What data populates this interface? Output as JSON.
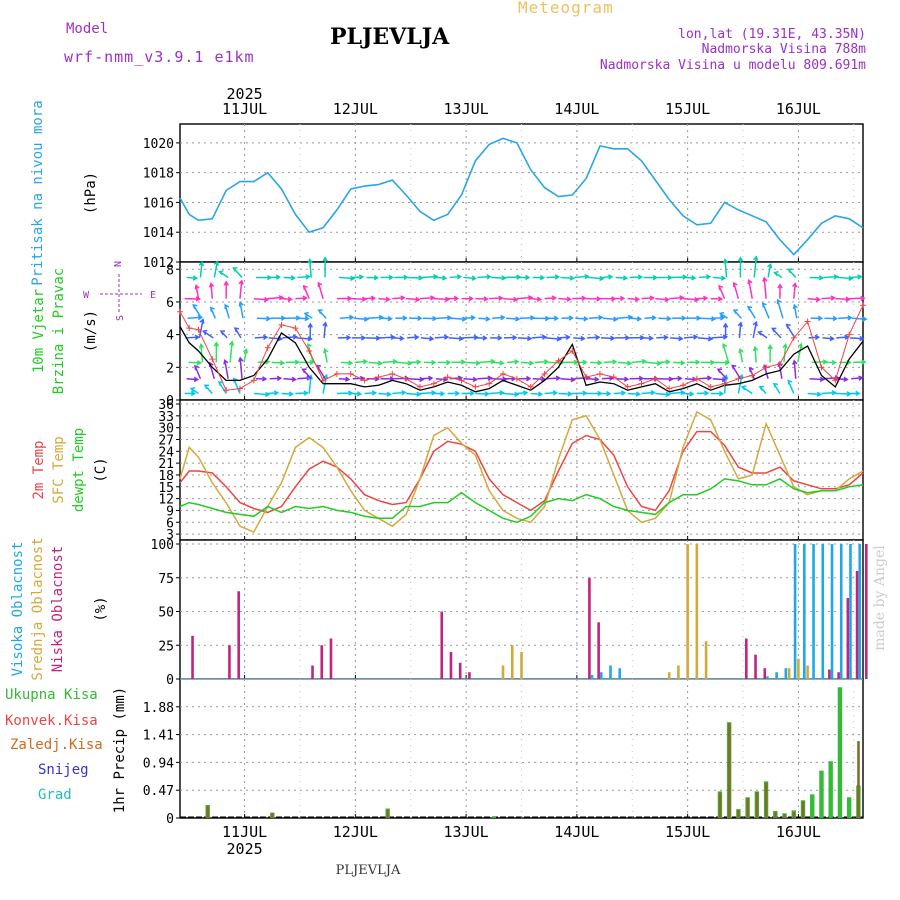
{
  "header": {
    "model_label": "Model",
    "model_name": "wrf-nmm_v3.9.1 e1km",
    "station": "PLJEVLJA",
    "product": "Meteogram",
    "lonlat": "lon,lat (19.31E, 43.35N)",
    "elevation": "Nadmorska Visina 788m",
    "model_elevation": "Nadmorska Visina u modelu 809.691m",
    "footer_station": "PLJEVLJA",
    "watermark": "made by Angel"
  },
  "time_axis": {
    "year": "2025",
    "days": [
      "11JUL",
      "12JUL",
      "13JUL",
      "14JUL",
      "15JUL",
      "16JUL"
    ],
    "start_hour": -14,
    "end_hour": 134
  },
  "colors": {
    "pressure": "#2aa6e6",
    "temp2m": "#ee4444",
    "sfc_temp": "#d4a93a",
    "dewpoint": "#22cc22",
    "high_cloud": "#1fa8e8",
    "mid_cloud": "#d4a93a",
    "low_cloud": "#c2237f",
    "total_precip": "#33bb33",
    "conv_precip": "#ee4444",
    "grid_precip": "#d2691e",
    "snow": "#3333cc",
    "hail": "#22bbbb",
    "wind_magenta": "#9b30c8"
  },
  "panels": {
    "pressure": {
      "title": "Pritisak na nivou mora",
      "unit": "(hPa)"
    },
    "wind": {
      "title1": "10m Vjetar",
      "title2": "Brzina i Pravac",
      "unit": "(m/s)",
      "compass_n": "N",
      "compass_s": "S",
      "compass_w": "W",
      "compass_e": "E"
    },
    "temp": {
      "title1": "2m Temp",
      "title2": "SFC Temp",
      "title3": "dewpt Temp",
      "unit": "(C)"
    },
    "cloud": {
      "title1": "Visoka Oblacnost",
      "title2": "Srednja Oblacnost",
      "title3": "Niska Oblacnost",
      "unit": "(%)"
    },
    "precip": {
      "legend": [
        "Ukupna Kisa",
        "Konvek.Kisa",
        "Zaledj.Kisa",
        "Snijeg",
        "Grad"
      ],
      "unit": "1hr Precip (mm)"
    }
  },
  "chart_data": [
    {
      "type": "line",
      "title": "Pritisak na nivou mora",
      "ylabel": "(hPa)",
      "ylim": [
        1012,
        1021
      ],
      "yticks": [
        "1012",
        "1014",
        "1016",
        "1018",
        "1020"
      ],
      "x": [
        -14,
        -12,
        -10,
        -7,
        -4,
        -1,
        2,
        5,
        8,
        11,
        14,
        17,
        20,
        23,
        26,
        29,
        32,
        35,
        38,
        41,
        44,
        47,
        50,
        53,
        56,
        59,
        62,
        65,
        68,
        71,
        74,
        77,
        80,
        83,
        86,
        89,
        92,
        95,
        98,
        101,
        104,
        107,
        110,
        113,
        116,
        119,
        122,
        125,
        128,
        131,
        134
      ],
      "series": [
        {
          "name": "Pritisak na nivou mora",
          "values": [
            1016.3,
            1015.2,
            1014.8,
            1014.9,
            1016.8,
            1017.4,
            1017.4,
            1018.0,
            1016.9,
            1015.2,
            1014.0,
            1014.3,
            1015.5,
            1016.9,
            1017.1,
            1017.2,
            1017.5,
            1016.5,
            1015.4,
            1014.8,
            1015.2,
            1016.5,
            1018.8,
            1019.9,
            1020.3,
            1020.0,
            1018.2,
            1017.0,
            1016.4,
            1016.5,
            1017.6,
            1019.8,
            1019.6,
            1019.6,
            1018.8,
            1017.5,
            1016.2,
            1015.1,
            1014.5,
            1014.6,
            1016.0,
            1015.5,
            1015.1,
            1014.7,
            1013.5,
            1012.5,
            1013.5,
            1014.6,
            1015.1,
            1014.9,
            1014.3
          ]
        }
      ]
    },
    {
      "type": "line",
      "title": "10m Vjetar Brzina i Pravac",
      "ylabel": "(m/s)",
      "ylim": [
        0,
        8.2
      ],
      "yticks": [
        "0",
        "2",
        "4",
        "6",
        "8"
      ],
      "x": [
        -14,
        -12,
        -10,
        -7,
        -4,
        -1,
        2,
        5,
        8,
        11,
        14,
        17,
        20,
        23,
        26,
        29,
        32,
        35,
        38,
        41,
        44,
        47,
        50,
        53,
        56,
        59,
        62,
        65,
        68,
        71,
        74,
        77,
        80,
        83,
        86,
        89,
        92,
        95,
        98,
        101,
        104,
        107,
        110,
        113,
        116,
        119,
        122,
        125,
        128,
        131,
        134
      ],
      "series": [
        {
          "name": "speed",
          "values": [
            4.5,
            3.5,
            3.0,
            2.0,
            1.2,
            1.2,
            1.5,
            2.5,
            4.1,
            3.5,
            2.0,
            1.0,
            1.0,
            1.0,
            0.8,
            0.9,
            1.2,
            1.0,
            0.6,
            0.8,
            1.1,
            0.9,
            0.5,
            0.7,
            1.2,
            0.9,
            0.6,
            1.2,
            2.0,
            3.4,
            0.9,
            1.1,
            1.0,
            0.6,
            0.8,
            1.0,
            0.5,
            0.7,
            1.0,
            0.6,
            0.9,
            1.0,
            1.2,
            1.6,
            1.8,
            2.8,
            3.3,
            1.5,
            0.8,
            2.5,
            3.6
          ]
        },
        {
          "name": "gust",
          "values": [
            5.4,
            4.4,
            4.3,
            2.5,
            0.6,
            0.7,
            1.2,
            3.2,
            4.6,
            4.4,
            3.0,
            1.2,
            1.6,
            1.6,
            1.2,
            1.4,
            1.6,
            1.3,
            0.8,
            1.0,
            1.4,
            1.2,
            0.8,
            1.0,
            1.6,
            1.3,
            0.8,
            1.6,
            2.4,
            3.0,
            1.4,
            1.6,
            1.4,
            0.8,
            1.0,
            1.3,
            0.7,
            0.9,
            1.3,
            0.8,
            1.0,
            1.3,
            1.5,
            2.0,
            2.2,
            3.8,
            4.8,
            2.0,
            1.2,
            4.0,
            5.8
          ]
        }
      ]
    },
    {
      "type": "line",
      "title": "2m Temp / SFC Temp / dewpt Temp",
      "ylabel": "(C)",
      "ylim": [
        1.5,
        36
      ],
      "yticks": [
        "3",
        "6",
        "9",
        "12",
        "15",
        "18",
        "21",
        "24",
        "27",
        "30",
        "33",
        "36"
      ],
      "x": [
        -14,
        -12,
        -10,
        -7,
        -4,
        -1,
        2,
        5,
        8,
        11,
        14,
        17,
        20,
        23,
        26,
        29,
        32,
        35,
        38,
        41,
        44,
        47,
        50,
        53,
        56,
        59,
        62,
        65,
        68,
        71,
        74,
        77,
        80,
        83,
        86,
        89,
        92,
        95,
        98,
        101,
        104,
        107,
        110,
        113,
        116,
        119,
        122,
        125,
        128,
        131,
        134
      ],
      "series": [
        {
          "name": "2m Temp",
          "values": [
            16,
            19,
            19,
            18.5,
            15,
            11,
            9.5,
            8.5,
            10,
            15,
            19.5,
            21.5,
            20,
            17,
            13,
            11.5,
            10.5,
            11,
            17,
            24,
            26.5,
            25.8,
            24,
            17,
            13,
            11,
            9,
            11.5,
            19,
            26,
            28,
            27,
            23,
            15,
            10,
            9,
            14,
            24,
            29,
            29,
            25.5,
            20,
            18.5,
            18.5,
            20,
            16.5,
            15.5,
            14.5,
            14.5,
            15.5,
            18.5
          ]
        },
        {
          "name": "SFC Temp",
          "values": [
            17,
            25,
            22.5,
            16,
            11,
            5,
            3.5,
            10,
            16,
            25,
            27.5,
            25,
            20,
            14,
            9,
            7,
            5,
            8,
            17,
            28,
            30,
            26,
            23,
            14,
            9,
            7,
            6,
            10,
            22,
            32,
            33,
            27,
            18,
            9,
            6,
            7,
            11,
            25,
            34,
            32,
            24,
            17,
            18,
            31,
            23,
            15,
            13,
            14,
            14,
            17,
            19
          ]
        },
        {
          "name": "dewpt Temp",
          "values": [
            10,
            11,
            10.5,
            9.5,
            8.5,
            8,
            7.5,
            10,
            8.5,
            10,
            9.5,
            10,
            9,
            8.5,
            7.5,
            7,
            7,
            10,
            10,
            11,
            11,
            13.5,
            11,
            9,
            7,
            6,
            7.5,
            11,
            12,
            11.5,
            13,
            12,
            10,
            9,
            8.5,
            8,
            11,
            13,
            13,
            14.5,
            17,
            16.5,
            15.5,
            15.5,
            17,
            14.5,
            13.5,
            14,
            14,
            15,
            15.5
          ]
        }
      ]
    },
    {
      "type": "bar",
      "title": "Visoka / Srednja / Niska Oblacnost",
      "ylabel": "(%)",
      "ylim": [
        0,
        100
      ],
      "yticks": [
        "0",
        "25",
        "50",
        "75",
        "100"
      ],
      "x": [
        -12,
        -10,
        -8,
        -6,
        -4,
        -2,
        0,
        2,
        4,
        6,
        8,
        10,
        12,
        14,
        16,
        18,
        20,
        22,
        24,
        26,
        28,
        30,
        32,
        34,
        36,
        38,
        40,
        42,
        44,
        46,
        48,
        50,
        52,
        54,
        56,
        58,
        60,
        62,
        64,
        66,
        68,
        70,
        72,
        74,
        76,
        78,
        80,
        82,
        84,
        86,
        88,
        90,
        92,
        94,
        96,
        98,
        100,
        102,
        104,
        106,
        108,
        110,
        112,
        114,
        116,
        118,
        120,
        122,
        124,
        126,
        128,
        130,
        132,
        134
      ],
      "series": [
        {
          "name": "Visoka Oblacnost",
          "values": [
            0,
            0,
            0,
            0,
            0,
            0,
            0,
            0,
            0,
            0,
            0,
            0,
            0,
            0,
            0,
            0,
            0,
            0,
            0,
            0,
            0,
            0,
            0,
            0,
            0,
            0,
            0,
            0,
            0,
            0,
            0,
            0,
            0,
            0,
            0,
            0,
            0,
            0,
            0,
            0,
            0,
            0,
            0,
            0,
            3,
            5,
            10,
            8,
            0,
            0,
            0,
            0,
            0,
            0,
            0,
            0,
            0,
            0,
            0,
            0,
            0,
            0,
            0,
            2,
            5,
            8,
            100,
            100,
            100,
            100,
            100,
            100,
            100,
            100
          ]
        },
        {
          "name": "Srednja Oblacnost",
          "values": [
            0,
            0,
            0,
            0,
            0,
            0,
            0,
            0,
            0,
            0,
            0,
            0,
            0,
            0,
            0,
            0,
            0,
            0,
            0,
            0,
            0,
            0,
            0,
            0,
            0,
            0,
            0,
            0,
            0,
            0,
            0,
            0,
            0,
            0,
            10,
            25,
            20,
            0,
            0,
            0,
            0,
            0,
            0,
            0,
            0,
            0,
            0,
            0,
            0,
            0,
            0,
            0,
            5,
            10,
            100,
            100,
            28,
            0,
            0,
            0,
            0,
            0,
            0,
            0,
            0,
            8,
            15,
            10,
            0,
            0,
            0,
            0,
            0,
            0
          ]
        },
        {
          "name": "Niska Oblacnost",
          "values": [
            32,
            0,
            0,
            0,
            25,
            65,
            0,
            0,
            0,
            0,
            0,
            0,
            0,
            10,
            25,
            30,
            0,
            0,
            0,
            0,
            0,
            0,
            0,
            0,
            0,
            0,
            0,
            50,
            20,
            12,
            5,
            0,
            0,
            0,
            0,
            0,
            0,
            0,
            0,
            0,
            0,
            0,
            0,
            75,
            42,
            0,
            0,
            0,
            0,
            0,
            0,
            0,
            0,
            0,
            0,
            0,
            0,
            0,
            0,
            0,
            30,
            18,
            8,
            0,
            0,
            0,
            0,
            0,
            0,
            7,
            5,
            60,
            80,
            100
          ]
        }
      ]
    },
    {
      "type": "bar",
      "title": "1hr Precip",
      "ylabel": "1hr Precip (mm)",
      "ylim": [
        0,
        2.35
      ],
      "yticks": [
        "0",
        "0.47",
        "0.94",
        "1.41",
        "1.88"
      ],
      "x": [
        -8,
        6,
        31,
        54,
        103,
        105,
        107,
        109,
        111,
        113,
        115,
        117,
        119,
        121,
        123,
        125,
        127,
        129,
        131,
        133
      ],
      "series": [
        {
          "name": "Ukupna Kisa",
          "values": [
            0.22,
            0.09,
            0.16,
            0.02,
            0.45,
            1.62,
            0.15,
            0.35,
            0.45,
            0.62,
            0.12,
            0.08,
            0.13,
            0.3,
            0.4,
            0.8,
            0.96,
            2.21,
            0.35,
            0.55
          ]
        },
        {
          "name": "Konvek.Kisa",
          "values": [
            0.2,
            0.09,
            0.14,
            0.0,
            0.43,
            1.6,
            0.14,
            0.34,
            0.44,
            0.6,
            0.1,
            0.06,
            0.1,
            0.28,
            0.0,
            0.0,
            0.0,
            0.0,
            0.0,
            1.3
          ]
        }
      ]
    }
  ]
}
